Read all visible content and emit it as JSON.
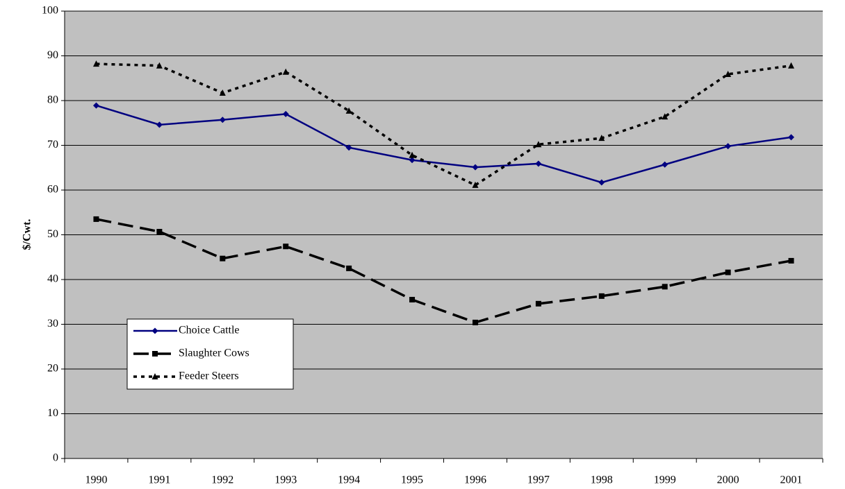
{
  "chart_data": {
    "type": "line",
    "y_label": "$/Cwt.",
    "categories": [
      "1990",
      "1991",
      "1992",
      "1993",
      "1994",
      "1995",
      "1996",
      "1997",
      "1998",
      "1999",
      "2000",
      "2001"
    ],
    "series": [
      {
        "name": "Choice Cattle",
        "color": "#000080",
        "dash": "solid",
        "marker": "diamond",
        "values": [
          78.9,
          74.6,
          75.7,
          77.0,
          69.5,
          66.7,
          65.1,
          65.9,
          61.7,
          65.7,
          69.8,
          71.8
        ]
      },
      {
        "name": "Slaughter Cows",
        "color": "#000000",
        "dash": "long",
        "marker": "square",
        "values": [
          53.5,
          50.7,
          44.7,
          47.4,
          42.5,
          35.5,
          30.4,
          34.6,
          36.3,
          38.4,
          41.6,
          44.2
        ]
      },
      {
        "name": "Feeder Steers",
        "color": "#000000",
        "dash": "dotted",
        "marker": "triangle",
        "values": [
          88.2,
          87.8,
          81.7,
          86.4,
          77.7,
          67.8,
          61.1,
          70.2,
          71.6,
          76.4,
          85.9,
          87.8
        ]
      }
    ],
    "ylim": [
      0,
      100
    ],
    "yticks": [
      0,
      10,
      20,
      30,
      40,
      50,
      60,
      70,
      80,
      90,
      100
    ],
    "grid": true,
    "legend": "lower left",
    "background": "#c0c0c0"
  }
}
